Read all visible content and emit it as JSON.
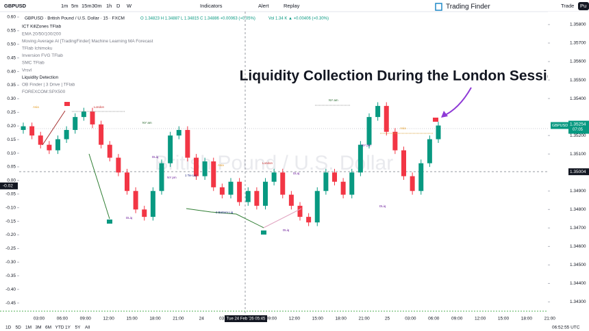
{
  "toolbar": {
    "symbol": "GBPUSD",
    "intervals": [
      "1m",
      "5m",
      "15m",
      "30m",
      "1h",
      "D",
      "W"
    ],
    "indicators": "Indicators",
    "alert": "Alert",
    "replay": "Replay",
    "brand": "Trading Finder",
    "trade": "Trade",
    "user": "Pu"
  },
  "legend": {
    "symbol_line": "GBPUSD · British Pound / U.S. Dollar · 15 · FXCM",
    "ohlc": "O 1.34823 H 1.34887 L 1.34815 C 1.34886 +0.00063 (+0.05%)",
    "volume": "Vol 1.34 K ▲ +0.00406 (+0.30%)",
    "indicators": [
      "ICT KillZones TFlab",
      "EMA 20/50/100/200",
      "Moving Average AI [TradingFinder] Machine Learning MA Forecast",
      "TFlab Ichimoku",
      "Inversion FVG TFlab",
      "SMC TFlab",
      "Vrsvl",
      "Liquidity Detection",
      "OB Finder | 3 Drive | TFlab",
      "FOREXCOM:SPX500"
    ]
  },
  "headline": "Liquidity Collection During the London Session",
  "watermark": "British Pound / U.S. Dollar",
  "annotations": [
    "Asia",
    "London",
    "NY am",
    "DLiq",
    "NY pm",
    "1 Tie Liq",
    "2 Bottom Liq",
    "DLiq",
    "Asia",
    "London",
    "DLiq",
    "NY am",
    "NY pm",
    "DLiq",
    "Asia",
    "DLiq"
  ],
  "chart_data": {
    "type": "candlestick",
    "up_color": "#089981",
    "down_color": "#f23645",
    "categories": [
      "03:00",
      "06:00",
      "09:00",
      "12:00",
      "15:00",
      "18:00",
      "21:00",
      "24",
      "03:00",
      "06:00",
      "09:00",
      "12:00",
      "15:00",
      "18:00",
      "21:00",
      "25",
      "03:00",
      "06:00",
      "09:00",
      "12:00",
      "15:00",
      "18:00",
      "21:00"
    ],
    "open": [
      1.3523,
      1.3525,
      1.352,
      1.3515,
      1.3512,
      1.3518,
      1.3523,
      1.353,
      1.3533,
      1.3526,
      1.3515,
      1.3508,
      1.35,
      1.349,
      1.348,
      1.3476,
      1.349,
      1.3505,
      1.352,
      1.3523,
      1.3508,
      1.3498,
      1.3506,
      1.3492,
      1.3488,
      1.3495,
      1.3484,
      1.349,
      1.3482,
      1.3495,
      1.35,
      1.3488,
      1.3482,
      1.3476,
      1.3473,
      1.349,
      1.35,
      1.3495,
      1.3488,
      1.35,
      1.3515,
      1.353,
      1.3536,
      1.3522,
      1.3512,
      1.3498,
      1.349,
      1.3505,
      1.3518
    ],
    "high": [
      1.3527,
      1.3527,
      1.3522,
      1.3517,
      1.352,
      1.3525,
      1.3532,
      1.3535,
      1.3535,
      1.3528,
      1.3517,
      1.351,
      1.3502,
      1.3492,
      1.3482,
      1.3492,
      1.3507,
      1.3522,
      1.3525,
      1.3525,
      1.351,
      1.3508,
      1.3508,
      1.3494,
      1.3497,
      1.3497,
      1.3492,
      1.3492,
      1.3497,
      1.3502,
      1.3502,
      1.349,
      1.3484,
      1.3478,
      1.3492,
      1.3502,
      1.3502,
      1.3497,
      1.3502,
      1.3517,
      1.3532,
      1.3538,
      1.3538,
      1.3524,
      1.3514,
      1.35,
      1.3507,
      1.352,
      1.35274
    ],
    "low": [
      1.3521,
      1.3518,
      1.3513,
      1.351,
      1.351,
      1.3516,
      1.3521,
      1.3528,
      1.3524,
      1.3513,
      1.3506,
      1.3498,
      1.3488,
      1.3478,
      1.3474,
      1.3474,
      1.3488,
      1.3503,
      1.3518,
      1.3506,
      1.3496,
      1.3496,
      1.349,
      1.3486,
      1.3486,
      1.3482,
      1.3482,
      1.348,
      1.348,
      1.3493,
      1.3486,
      1.348,
      1.3474,
      1.3471,
      1.3471,
      1.3488,
      1.3493,
      1.3486,
      1.3486,
      1.3498,
      1.3513,
      1.3528,
      1.352,
      1.351,
      1.3496,
      1.3488,
      1.3488,
      1.3503,
      1.3516
    ],
    "close": [
      1.3525,
      1.352,
      1.3515,
      1.3512,
      1.3518,
      1.3523,
      1.353,
      1.3533,
      1.3526,
      1.3515,
      1.3508,
      1.35,
      1.349,
      1.348,
      1.3476,
      1.349,
      1.3505,
      1.352,
      1.3523,
      1.3508,
      1.3498,
      1.3506,
      1.3492,
      1.3488,
      1.3495,
      1.3484,
      1.349,
      1.3482,
      1.3495,
      1.35,
      1.3488,
      1.3482,
      1.3476,
      1.3473,
      1.349,
      1.35,
      1.3495,
      1.3488,
      1.35,
      1.3515,
      1.353,
      1.3536,
      1.3522,
      1.3512,
      1.3498,
      1.349,
      1.3505,
      1.3518,
      1.35254
    ],
    "ylim": [
      1.3425,
      1.3587
    ],
    "yticks": [
      {
        "value": 1.343,
        "label": "1.34300"
      },
      {
        "value": 1.344,
        "label": "1.34400"
      },
      {
        "value": 1.345,
        "label": "1.34500"
      },
      {
        "value": 1.346,
        "label": "1.34600"
      },
      {
        "value": 1.347,
        "label": "1.34700"
      },
      {
        "value": 1.348,
        "label": "1.34800"
      },
      {
        "value": 1.349,
        "label": "1.34900"
      },
      {
        "value": 1.351,
        "label": "1.35100"
      },
      {
        "value": 1.352,
        "label": "1.35200"
      },
      {
        "value": 1.354,
        "label": "1.35400"
      },
      {
        "value": 1.355,
        "label": "1.35500"
      },
      {
        "value": 1.356,
        "label": "1.35600"
      },
      {
        "value": 1.357,
        "label": "1.35700"
      },
      {
        "value": 1.358,
        "label": "1.35800"
      }
    ],
    "y2lim": [
      -0.48,
      0.62
    ],
    "y2ticks": [
      {
        "value": 0.6,
        "label": "0.60"
      },
      {
        "value": 0.55,
        "label": "0.55"
      },
      {
        "value": 0.5,
        "label": "0.50"
      },
      {
        "value": 0.45,
        "label": "0.45"
      },
      {
        "value": 0.4,
        "label": "0.40"
      },
      {
        "value": 0.35,
        "label": "0.35"
      },
      {
        "value": 0.3,
        "label": "0.30"
      },
      {
        "value": 0.25,
        "label": "0.25"
      },
      {
        "value": 0.2,
        "label": "0.20"
      },
      {
        "value": 0.15,
        "label": "0.15"
      },
      {
        "value": 0.1,
        "label": "0.10"
      },
      {
        "value": 0.05,
        "label": "0.05"
      },
      {
        "value": 0,
        "label": "0.00"
      },
      {
        "value": -0.05,
        "label": "-0.05"
      },
      {
        "value": -0.1,
        "label": "-0.10"
      },
      {
        "value": -0.15,
        "label": "-0.15"
      },
      {
        "value": -0.2,
        "label": "-0.20"
      },
      {
        "value": -0.25,
        "label": "-0.25"
      },
      {
        "value": -0.3,
        "label": "-0.30"
      },
      {
        "value": -0.35,
        "label": "-0.35"
      },
      {
        "value": -0.4,
        "label": "-0.40"
      },
      {
        "value": -0.45,
        "label": "-0.45"
      }
    ],
    "last_price": {
      "value": 1.35254,
      "label": "1.35254"
    },
    "symbol_tag": "GBPUSD",
    "countdown": "07:05",
    "crosshair_price": {
      "value": 1.35004,
      "label": "1.35004"
    },
    "crosshair_pct": {
      "value": -0.02,
      "label": "-0.02"
    },
    "crosshair_time": "Tue 24 Feb '26  05:45"
  },
  "bottom": {
    "ranges": [
      "1D",
      "5D",
      "1M",
      "3M",
      "6M",
      "YTD",
      "1Y",
      "5Y",
      "All"
    ],
    "clock": "06:52:55 UTC"
  }
}
